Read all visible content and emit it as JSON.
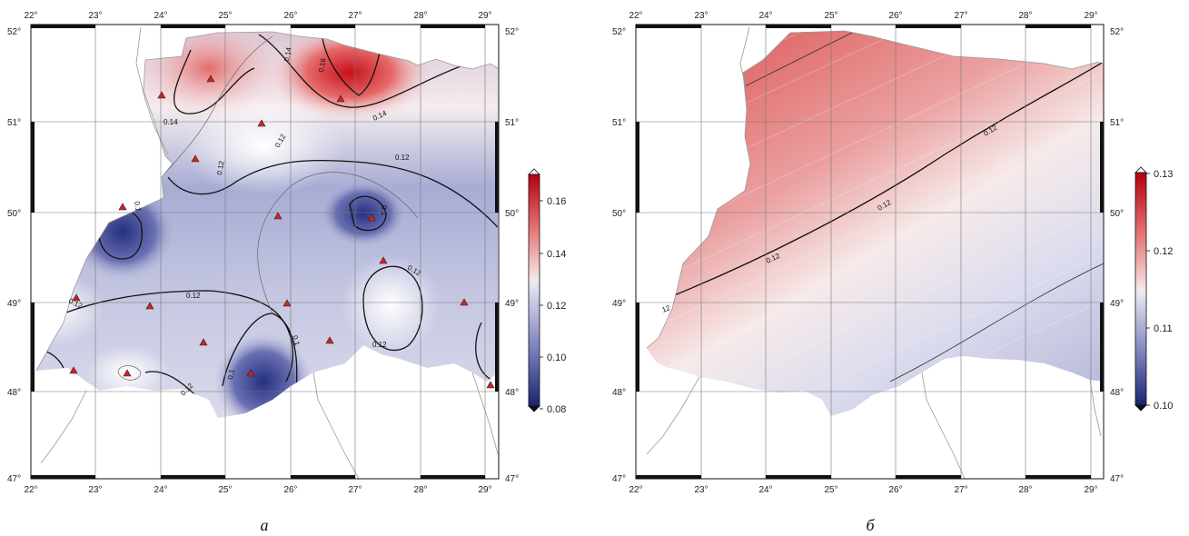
{
  "panels": [
    {
      "id": "a",
      "label": "а",
      "lon_ticks": [
        "22°",
        "23°",
        "24°",
        "25°",
        "26°",
        "27°",
        "28°",
        "29°"
      ],
      "lat_ticks": [
        "52°",
        "51°",
        "50°",
        "49°",
        "48°",
        "47°"
      ],
      "colorbar": {
        "ticks": [
          "0.16",
          "0.14",
          "0.12",
          "0.10",
          "0.08"
        ],
        "min": 0.08,
        "max": 0.17
      },
      "contour_labels": [
        "0.16",
        "0.14",
        "0.14",
        "0.14",
        "0.12",
        "0.12",
        "0.12",
        "0.12",
        "0.12",
        "0.12",
        "0.12",
        "0.1",
        "0.1",
        "0.1",
        "0.1",
        "0.12",
        "0.12"
      ]
    },
    {
      "id": "b",
      "label": "б",
      "lon_ticks": [
        "22°",
        "23°",
        "24°",
        "25°",
        "26°",
        "27°",
        "28°",
        "29°"
      ],
      "lat_ticks": [
        "52°",
        "51°",
        "50°",
        "49°",
        "48°",
        "47°"
      ],
      "colorbar": {
        "ticks": [
          "0.13",
          "0.12",
          "0.11",
          "0.10"
        ],
        "min": 0.1,
        "max": 0.13
      },
      "contour_labels": [
        "0.12",
        "0.12",
        "0.12",
        "12"
      ]
    }
  ],
  "colors": {
    "high": "#c0161e",
    "mid": "#f7f3f3",
    "low": "#1f2a7a",
    "station": "#d62020"
  }
}
